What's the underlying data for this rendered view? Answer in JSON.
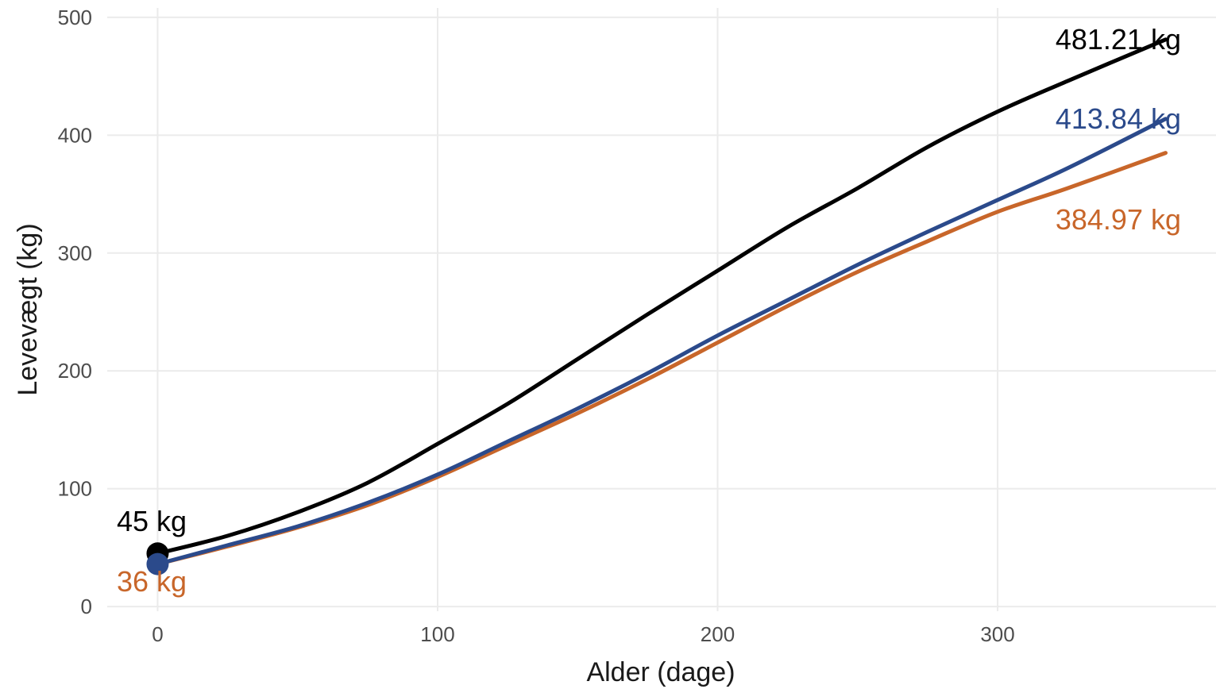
{
  "chart_data": {
    "type": "line",
    "title": "",
    "xlabel": "Alder (dage)",
    "ylabel": "Levevægt (kg)",
    "xlim": [
      -18,
      378
    ],
    "ylim": [
      -4,
      508
    ],
    "x_ticks": [
      0,
      100,
      200,
      300
    ],
    "y_ticks": [
      0,
      100,
      200,
      300,
      400,
      500
    ],
    "grid": true,
    "legend": "none",
    "start_labels": [
      {
        "text": "45 kg",
        "color": "#000000"
      },
      {
        "text": "36 kg",
        "color": "#c8662a"
      }
    ],
    "series": [
      {
        "color": "#000000",
        "end_label": "481.21 kg",
        "x": [
          0,
          25,
          50,
          75,
          100,
          125,
          150,
          175,
          200,
          225,
          250,
          275,
          300,
          325,
          360
        ],
        "y": [
          45,
          60,
          80,
          105,
          138,
          172,
          210,
          248,
          285,
          322,
          355,
          390,
          420,
          446,
          481.21
        ]
      },
      {
        "color": "#2b4a8b",
        "end_label": "413.84 kg",
        "x": [
          0,
          25,
          50,
          75,
          100,
          125,
          150,
          175,
          200,
          225,
          250,
          275,
          300,
          325,
          360
        ],
        "y": [
          36,
          52,
          68,
          88,
          112,
          140,
          168,
          198,
          230,
          260,
          290,
          318,
          345,
          372,
          413.84
        ]
      },
      {
        "color": "#c8662a",
        "end_label": "384.97 kg",
        "x": [
          0,
          25,
          50,
          75,
          100,
          125,
          150,
          175,
          200,
          225,
          250,
          275,
          300,
          325,
          360
        ],
        "y": [
          36,
          51,
          67,
          86,
          110,
          137,
          164,
          193,
          224,
          255,
          284,
          310,
          335,
          355,
          384.97
        ]
      }
    ],
    "start_points": [
      {
        "x": 0,
        "y": 45,
        "color": "#000000"
      },
      {
        "x": 0,
        "y": 36,
        "color": "#2b4a8b"
      }
    ]
  }
}
